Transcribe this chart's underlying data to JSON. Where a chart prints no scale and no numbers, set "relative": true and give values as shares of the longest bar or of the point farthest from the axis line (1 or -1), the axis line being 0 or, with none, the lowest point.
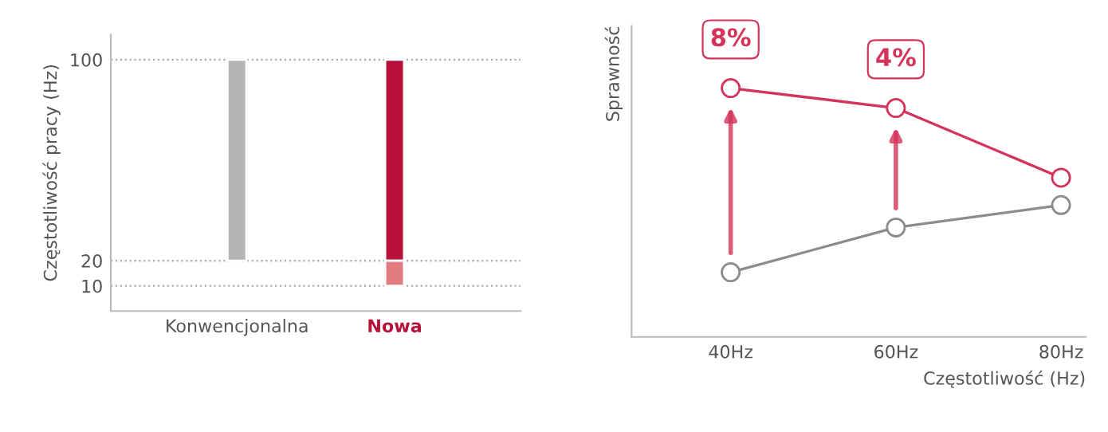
{
  "chart_data": [
    {
      "type": "bar",
      "categories": [
        "Konwencjonalna",
        "Nowa"
      ],
      "ylabel": "Częstotliwość pracy (Hz)",
      "ylim": [
        0,
        110
      ],
      "yticks": [
        10,
        20,
        100
      ],
      "grid": "y",
      "series": [
        {
          "values": [
            80,
            80
          ],
          "base": [
            20,
            20
          ],
          "colors": [
            "#b4b4b4",
            "#b5113a"
          ]
        },
        {
          "values": [
            null,
            10
          ],
          "base": [
            null,
            10
          ],
          "colors": [
            null,
            "#e07c80"
          ]
        }
      ]
    },
    {
      "type": "line",
      "categories": [
        "40Hz",
        "60Hz",
        "80Hz"
      ],
      "relative": true,
      "xlabel": "Częstotliwość (Hz)",
      "ylabel": "Sprawność",
      "marker": "circle",
      "series": [
        {
          "color": "#d4335a",
          "values": [
            1,
            0.92,
            0.64
          ]
        },
        {
          "color": "#8c8c8c",
          "values": [
            0.26,
            0.44,
            0.53
          ]
        }
      ],
      "annotations": [
        {
          "text": "8%",
          "x": "40Hz",
          "y": 1
        },
        {
          "text": "4%",
          "x": "60Hz",
          "y": 0.92
        }
      ]
    }
  ]
}
